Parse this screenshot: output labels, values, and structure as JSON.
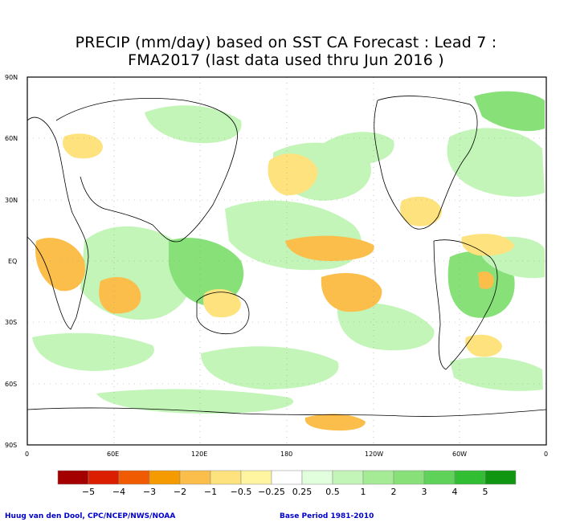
{
  "title": {
    "line1": "PRECIP (mm/day) based on SST CA Forecast : Lead 7 :",
    "line2": "FMA2017 (last data used thru Jun 2016 )"
  },
  "axes": {
    "lat_labels": [
      "90N",
      "60N",
      "30N",
      "EQ",
      "30S",
      "60S",
      "90S"
    ],
    "lon_labels": [
      "0",
      "60E",
      "120E",
      "180",
      "120W",
      "60W",
      "0"
    ]
  },
  "colorbar": {
    "labels": [
      "−5",
      "−4",
      "−3",
      "−2",
      "−1",
      "−0.5",
      "−0.25",
      "0.25",
      "0.5",
      "1",
      "2",
      "3",
      "4",
      "5"
    ],
    "colors": [
      "#a50000",
      "#dc1e00",
      "#f05a00",
      "#f59b00",
      "#fbbe4b",
      "#fde27d",
      "#fff5a0",
      "#ffffff",
      "#e1ffdc",
      "#c3f5b9",
      "#a5eb96",
      "#87e178",
      "#5fd25a",
      "#32be32",
      "#119611"
    ]
  },
  "map_colors": {
    "ocean_white": "#ffffff",
    "wet_light": "#c3f5b9",
    "wet_medium": "#87e178",
    "dry_light": "#fde27d",
    "dry_medium": "#fbbe4b"
  },
  "footer": {
    "left": "Huug van den Dool, CPC/NCEP/NWS/NOAA",
    "right": "Base Period 1981-2010"
  }
}
